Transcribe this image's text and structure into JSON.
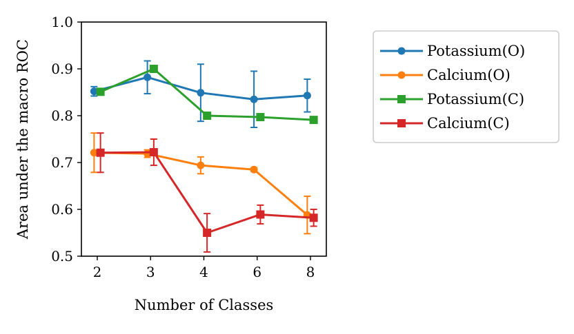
{
  "chart_data": {
    "type": "line",
    "title": "",
    "xlabel": "Number of Classes",
    "ylabel": "Area under the macro ROC",
    "categories": [
      "2",
      "3",
      "4",
      "6",
      "8"
    ],
    "ylim": [
      0.5,
      1.0
    ],
    "yticks": [
      "0.5",
      "0.6",
      "0.7",
      "0.8",
      "0.9",
      "1.0"
    ],
    "grid": false,
    "legend_position": "outside-right",
    "series": [
      {
        "name": "Potassium(O)",
        "color": "#1f77b4",
        "marker": "circle",
        "x_offset": -0.06,
        "values": [
          0.852,
          0.882,
          0.849,
          0.835,
          0.843
        ],
        "err": [
          0.01,
          0.035,
          0.061,
          0.06,
          0.035
        ]
      },
      {
        "name": "Calcium(O)",
        "color": "#ff7f0e",
        "marker": "circle",
        "x_offset": -0.06,
        "values": [
          0.721,
          0.719,
          0.694,
          0.685,
          0.588
        ],
        "err": [
          0.042,
          0.008,
          0.018,
          0.004,
          0.04
        ]
      },
      {
        "name": "Potassium(C)",
        "color": "#2ca02c",
        "marker": "square",
        "x_offset": 0.06,
        "values": [
          0.851,
          0.9,
          0.8,
          0.797,
          0.791
        ],
        "err": [
          0.004,
          0.004,
          0.003,
          0.003,
          0.003
        ]
      },
      {
        "name": "Calcium(C)",
        "color": "#d62728",
        "marker": "square",
        "x_offset": 0.06,
        "values": [
          0.721,
          0.722,
          0.55,
          0.589,
          0.582
        ],
        "err": [
          0.042,
          0.028,
          0.041,
          0.02,
          0.018
        ]
      }
    ]
  }
}
